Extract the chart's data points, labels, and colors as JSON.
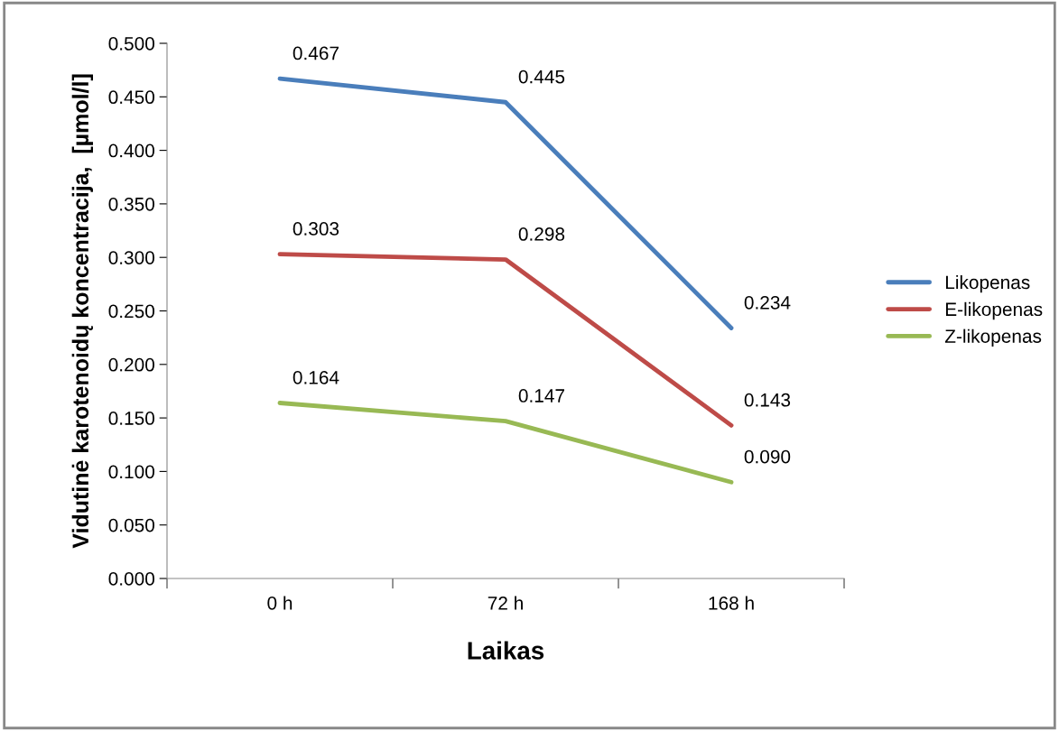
{
  "chart_data": {
    "type": "line",
    "xlabel": "Laikas",
    "ylabel": "Vidutinė karotenoidų koncentracija,  [µmol/l]",
    "categories": [
      "0 h",
      "72 h",
      "168 h"
    ],
    "series": [
      {
        "name": "Likopenas",
        "color": "#4a7ebb",
        "values": [
          0.467,
          0.445,
          0.234
        ],
        "value_labels": [
          "0.467",
          "0.445",
          "0.234"
        ]
      },
      {
        "name": "E-likopenas",
        "color": "#be4b48",
        "values": [
          0.303,
          0.298,
          0.143
        ],
        "value_labels": [
          "0.303",
          "0.298",
          "0.143"
        ]
      },
      {
        "name": "Z-likopenas",
        "color": "#98b954",
        "values": [
          0.164,
          0.147,
          0.09
        ],
        "value_labels": [
          "0.164",
          "0.147",
          "0.090"
        ]
      }
    ],
    "ylim": [
      0,
      0.5
    ],
    "yticks": [
      {
        "value": 0,
        "label": "0.000"
      },
      {
        "value": 0.05,
        "label": "0.050"
      },
      {
        "value": 0.1,
        "label": "0.100"
      },
      {
        "value": 0.15,
        "label": "0.150"
      },
      {
        "value": 0.2,
        "label": "0.200"
      },
      {
        "value": 0.25,
        "label": "0.250"
      },
      {
        "value": 0.3,
        "label": "0.300"
      },
      {
        "value": 0.35,
        "label": "0.350"
      },
      {
        "value": 0.4,
        "label": "0.400"
      },
      {
        "value": 0.45,
        "label": "0.450"
      },
      {
        "value": 0.5,
        "label": "0.500"
      }
    ],
    "grid": false,
    "legend": "right",
    "marker": "none",
    "line_style": "solid"
  }
}
